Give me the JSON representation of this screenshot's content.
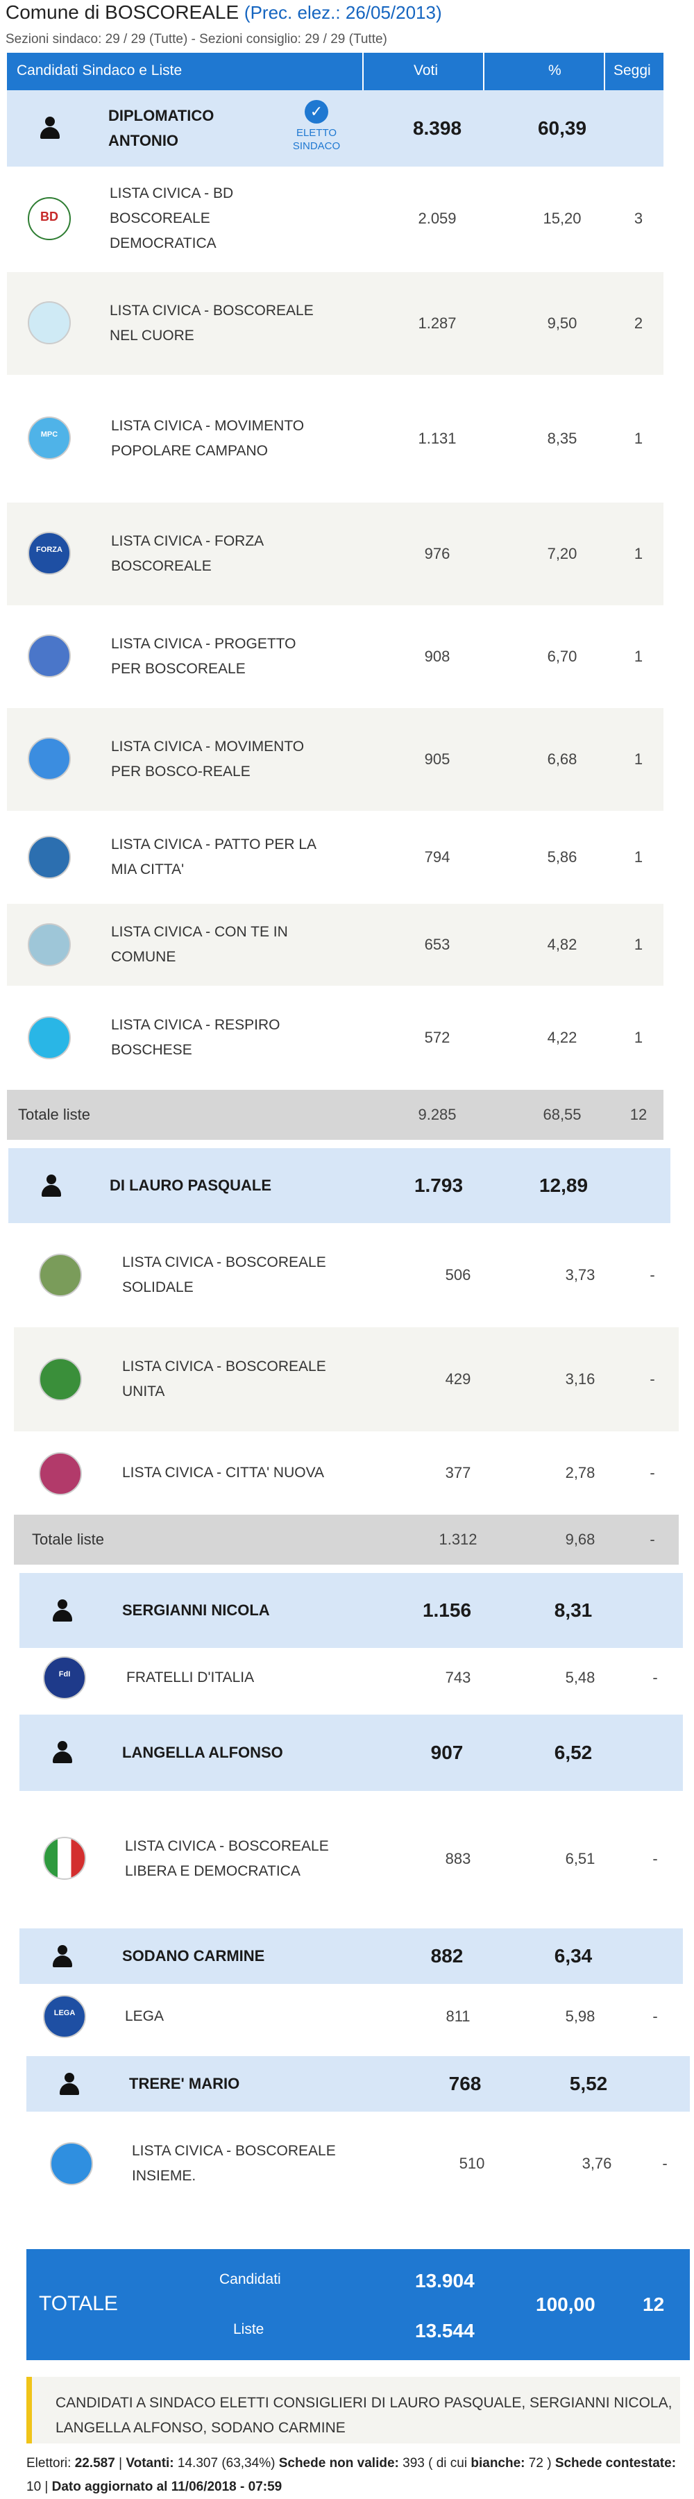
{
  "header": {
    "title": "Comune di BOSCOREALE",
    "prev": "(Prec. elez.: 26/05/2013)",
    "subtitle": "Sezioni sindaco: 29 / 29 (Tutte) - Sezioni consiglio: 29 / 29 (Tutte)"
  },
  "columns": {
    "candidates": "Candidati Sindaco e Liste",
    "votes": "Voti",
    "pct": "%",
    "seats": "Seggi"
  },
  "groups": [
    {
      "candidate": {
        "name": "DIPLOMATICO ANTONIO",
        "votes": "8.398",
        "pct": "60,39",
        "elected_label": "ELETTO SINDACO"
      },
      "lists": [
        {
          "name": "LISTA CIVICA - BD BOSCOREALE DEMOCRATICA",
          "votes": "2.059",
          "pct": "15,20",
          "seats": "3",
          "logo": "BD"
        },
        {
          "name": "LISTA CIVICA - BOSCOREALE NEL CUORE",
          "votes": "1.287",
          "pct": "9,50",
          "seats": "2",
          "logo": ""
        },
        {
          "name": "LISTA CIVICA - MOVIMENTO POPOLARE CAMPANO",
          "votes": "1.131",
          "pct": "8,35",
          "seats": "1",
          "logo": "MPC"
        },
        {
          "name": "LISTA CIVICA - FORZA BOSCOREALE",
          "votes": "976",
          "pct": "7,20",
          "seats": "1",
          "logo": "FORZA"
        },
        {
          "name": "LISTA CIVICA - PROGETTO PER BOSCOREALE",
          "votes": "908",
          "pct": "6,70",
          "seats": "1",
          "logo": ""
        },
        {
          "name": "LISTA CIVICA - MOVIMENTO PER BOSCO-REALE",
          "votes": "905",
          "pct": "6,68",
          "seats": "1",
          "logo": ""
        },
        {
          "name": "LISTA CIVICA - PATTO PER LA MIA CITTA'",
          "votes": "794",
          "pct": "5,86",
          "seats": "1",
          "logo": ""
        },
        {
          "name": "LISTA CIVICA - CON TE IN COMUNE",
          "votes": "653",
          "pct": "4,82",
          "seats": "1",
          "logo": ""
        },
        {
          "name": "LISTA CIVICA - RESPIRO BOSCHESE",
          "votes": "572",
          "pct": "4,22",
          "seats": "1",
          "logo": ""
        }
      ],
      "total": {
        "label": "Totale liste",
        "votes": "9.285",
        "pct": "68,55",
        "seats": "12"
      }
    },
    {
      "candidate": {
        "name": "DI LAURO PASQUALE",
        "votes": "1.793",
        "pct": "12,89"
      },
      "lists": [
        {
          "name": "LISTA CIVICA - BOSCOREALE SOLIDALE",
          "votes": "506",
          "pct": "3,73",
          "seats": "-",
          "logo": ""
        },
        {
          "name": "LISTA CIVICA - BOSCOREALE UNITA",
          "votes": "429",
          "pct": "3,16",
          "seats": "-",
          "logo": ""
        },
        {
          "name": "LISTA CIVICA - CITTA' NUOVA",
          "votes": "377",
          "pct": "2,78",
          "seats": "-",
          "logo": ""
        }
      ],
      "total": {
        "label": "Totale liste",
        "votes": "1.312",
        "pct": "9,68",
        "seats": "-"
      }
    },
    {
      "candidate": {
        "name": "SERGIANNI NICOLA",
        "votes": "1.156",
        "pct": "8,31"
      },
      "lists": [
        {
          "name": "FRATELLI D'ITALIA",
          "votes": "743",
          "pct": "5,48",
          "seats": "-",
          "logo": "FdI"
        }
      ]
    },
    {
      "candidate": {
        "name": "LANGELLA ALFONSO",
        "votes": "907",
        "pct": "6,52"
      },
      "lists": [
        {
          "name": "LISTA CIVICA - BOSCOREALE LIBERA E DEMOCRATICA",
          "votes": "883",
          "pct": "6,51",
          "seats": "-",
          "logo": ""
        }
      ]
    },
    {
      "candidate": {
        "name": "SODANO CARMINE",
        "votes": "882",
        "pct": "6,34"
      },
      "lists": [
        {
          "name": "LEGA",
          "votes": "811",
          "pct": "5,98",
          "seats": "-",
          "logo": "LEGA"
        }
      ]
    },
    {
      "candidate": {
        "name": "TRERE' MARIO",
        "votes": "768",
        "pct": "5,52"
      },
      "lists": [
        {
          "name": "LISTA CIVICA - BOSCOREALE INSIEME.",
          "votes": "510",
          "pct": "3,76",
          "seats": "-",
          "logo": ""
        }
      ]
    }
  ],
  "totale": {
    "label": "TOTALE",
    "candidati_label": "Candidati",
    "candidati": "13.904",
    "liste_label": "Liste",
    "liste": "13.544",
    "pct": "100,00",
    "seats": "12"
  },
  "notice": "CANDIDATI A SINDACO ELETTI CONSIGLIERI DI LAURO PASQUALE, SERGIANNI NICOLA, LANGELLA ALFONSO, SODANO CARMINE",
  "footer": {
    "elettori_label": "Elettori:",
    "elettori": "22.587",
    "votanti_label": "Votanti:",
    "votanti": "14.307 (63,34%)",
    "non_valide_label": "Schede non valide:",
    "non_valide": "393",
    "bianche_pre": "( di cui",
    "bianche_label": "bianche:",
    "bianche": "72 )",
    "contestate_label": "Schede contestate:",
    "contestate": "10",
    "aggiornato": "Dato aggiornato al 11/06/2018 - 07:59"
  },
  "colors": {
    "accent": "#1f78d1",
    "candidate_bg": "#d7e6f7",
    "total_bg": "#d6d6d6",
    "notice_bar": "#f0c419"
  }
}
